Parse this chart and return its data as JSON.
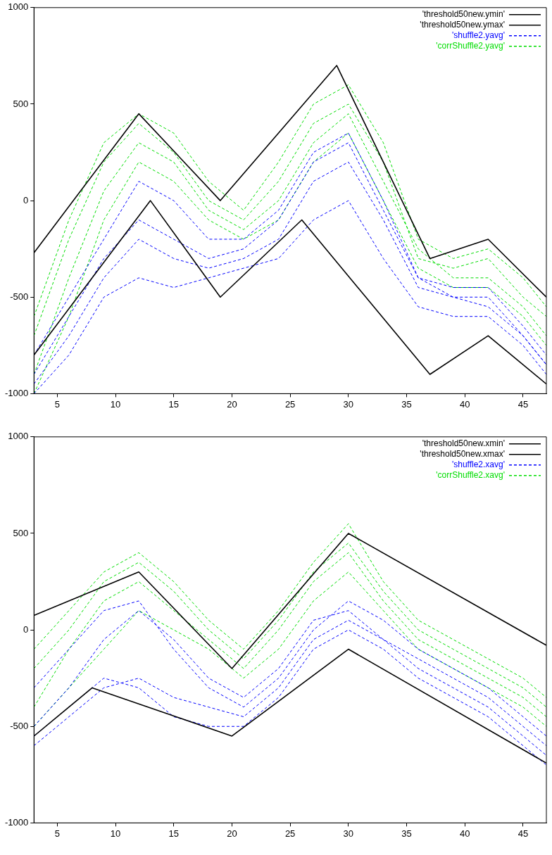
{
  "chart_data": [
    {
      "type": "line",
      "xlim": [
        3,
        47
      ],
      "ylim": [
        -1000,
        1000
      ],
      "xticks": [
        5,
        10,
        15,
        20,
        25,
        30,
        35,
        40,
        45
      ],
      "yticks": [
        -1000,
        -500,
        0,
        500,
        1000
      ],
      "grid": false,
      "legend": "top right",
      "marker": "none",
      "series": [
        {
          "name": "'threshold50new.ymin'",
          "color": "#000000",
          "line_style": "solid",
          "x": [
            3,
            13,
            19,
            26,
            37,
            42,
            47
          ],
          "values": [
            -800,
            0,
            -500,
            -100,
            -900,
            -700,
            -950
          ]
        },
        {
          "name": "'threshold50new.ymax'",
          "color": "#000000",
          "line_style": "solid",
          "x": [
            3,
            12,
            19,
            29,
            37,
            42,
            47
          ],
          "values": [
            -270,
            450,
            0,
            700,
            -300,
            -200,
            -500
          ]
        },
        {
          "name": "'shuffle2.yavg'",
          "color": "#0000ff",
          "line_style": "dashed",
          "x": [
            3,
            6,
            9,
            12,
            15,
            18,
            21,
            24,
            27,
            30,
            33,
            36,
            39,
            42,
            45,
            47
          ],
          "values": [
            -950,
            -700,
            -400,
            -200,
            -300,
            -350,
            -300,
            -200,
            100,
            200,
            -100,
            -450,
            -500,
            -500,
            -700,
            -850
          ]
        },
        {
          "color": "#0000ff",
          "line_style": "dashed",
          "x": [
            3,
            6,
            9,
            12,
            15,
            18,
            21,
            24,
            27,
            30,
            33,
            36,
            39,
            42,
            45,
            47
          ],
          "values": [
            -800,
            -500,
            -200,
            100,
            0,
            -200,
            -200,
            -50,
            250,
            350,
            0,
            -400,
            -450,
            -450,
            -650,
            -800
          ]
        },
        {
          "color": "#0000ff",
          "line_style": "dashed",
          "x": [
            3,
            6,
            9,
            12,
            15,
            18,
            21,
            24,
            27,
            30,
            33,
            36,
            39,
            42,
            45,
            47
          ],
          "values": [
            -1000,
            -800,
            -500,
            -400,
            -450,
            -400,
            -350,
            -300,
            -100,
            0,
            -300,
            -550,
            -600,
            -600,
            -750,
            -900
          ]
        },
        {
          "color": "#0000ff",
          "line_style": "dashed",
          "x": [
            3,
            6,
            9,
            12,
            15,
            18,
            21,
            24,
            27,
            30,
            33,
            36,
            39,
            42,
            45,
            47
          ],
          "values": [
            -900,
            -600,
            -300,
            -100,
            -200,
            -300,
            -250,
            -100,
            200,
            300,
            -50,
            -400,
            -500,
            -550,
            -700,
            -850
          ]
        },
        {
          "name": "'corrShuffle2.yavg'",
          "color": "#00dd00",
          "line_style": "dashed",
          "x": [
            3,
            6,
            9,
            12,
            15,
            18,
            21,
            24,
            27,
            30,
            33,
            36,
            39,
            42,
            45,
            47
          ],
          "values": [
            -700,
            -200,
            200,
            400,
            250,
            0,
            -100,
            100,
            400,
            500,
            200,
            -300,
            -350,
            -300,
            -500,
            -600
          ]
        },
        {
          "color": "#00dd00",
          "line_style": "dashed",
          "x": [
            3,
            6,
            9,
            12,
            15,
            18,
            21,
            24,
            27,
            30,
            33,
            36,
            39,
            42,
            45,
            47
          ],
          "values": [
            -900,
            -400,
            50,
            300,
            200,
            -50,
            -150,
            0,
            300,
            450,
            100,
            -250,
            -400,
            -400,
            -550,
            -700
          ]
        },
        {
          "color": "#00dd00",
          "line_style": "dashed",
          "x": [
            3,
            6,
            9,
            12,
            15,
            18,
            21,
            24,
            27,
            30,
            33,
            36,
            39,
            42,
            45,
            47
          ],
          "values": [
            -600,
            -100,
            300,
            450,
            350,
            100,
            -50,
            200,
            500,
            600,
            300,
            -200,
            -300,
            -250,
            -400,
            -550
          ]
        },
        {
          "color": "#00dd00",
          "line_style": "dashed",
          "x": [
            3,
            6,
            9,
            12,
            15,
            18,
            21,
            24,
            27,
            30,
            33,
            36,
            39,
            42,
            45,
            47
          ],
          "values": [
            -1000,
            -600,
            -100,
            200,
            100,
            -100,
            -200,
            -100,
            200,
            350,
            0,
            -350,
            -450,
            -450,
            -600,
            -750
          ]
        }
      ]
    },
    {
      "type": "line",
      "xlim": [
        3,
        47
      ],
      "ylim": [
        -1000,
        1000
      ],
      "xticks": [
        5,
        10,
        15,
        20,
        25,
        30,
        35,
        40,
        45
      ],
      "yticks": [
        -1000,
        -500,
        0,
        500,
        1000
      ],
      "grid": false,
      "legend": "top right",
      "marker": "none",
      "series": [
        {
          "name": "'threshold50new.xmin'",
          "color": "#000000",
          "line_style": "solid",
          "x": [
            3,
            8,
            20,
            30,
            47
          ],
          "values": [
            -550,
            -300,
            -550,
            -100,
            -690
          ]
        },
        {
          "name": "'threshold50new.xmax'",
          "color": "#000000",
          "line_style": "solid",
          "x": [
            3,
            12,
            20,
            30,
            47
          ],
          "values": [
            75,
            300,
            -200,
            500,
            -80
          ]
        },
        {
          "name": "'shuffle2.xavg'",
          "color": "#0000ff",
          "line_style": "dashed",
          "x": [
            3,
            6,
            9,
            12,
            15,
            18,
            21,
            24,
            27,
            30,
            33,
            36,
            39,
            42,
            45,
            47
          ],
          "values": [
            -500,
            -300,
            -50,
            100,
            -50,
            -250,
            -350,
            -200,
            50,
            100,
            -50,
            -150,
            -250,
            -350,
            -500,
            -600
          ]
        },
        {
          "color": "#0000ff",
          "line_style": "dashed",
          "x": [
            3,
            6,
            9,
            12,
            15,
            18,
            21,
            24,
            27,
            30,
            33,
            36,
            39,
            42,
            45,
            47
          ],
          "values": [
            -600,
            -450,
            -300,
            -250,
            -350,
            -400,
            -450,
            -300,
            -50,
            50,
            -50,
            -200,
            -300,
            -400,
            -550,
            -650
          ]
        },
        {
          "color": "#0000ff",
          "line_style": "dashed",
          "x": [
            3,
            6,
            9,
            12,
            15,
            18,
            21,
            24,
            27,
            30,
            33,
            36,
            39,
            42,
            45,
            47
          ],
          "values": [
            -300,
            -100,
            100,
            150,
            -100,
            -300,
            -400,
            -250,
            0,
            150,
            50,
            -100,
            -200,
            -300,
            -450,
            -550
          ]
        },
        {
          "color": "#0000ff",
          "line_style": "dashed",
          "x": [
            3,
            6,
            9,
            12,
            15,
            18,
            21,
            24,
            27,
            30,
            33,
            36,
            39,
            42,
            45,
            47
          ],
          "values": [
            -550,
            -400,
            -250,
            -300,
            -450,
            -500,
            -500,
            -350,
            -100,
            0,
            -100,
            -250,
            -350,
            -450,
            -600,
            -700
          ]
        },
        {
          "name": "'corrShuffle2.xavg'",
          "color": "#00dd00",
          "line_style": "dashed",
          "x": [
            3,
            6,
            9,
            12,
            15,
            18,
            21,
            24,
            27,
            30,
            33,
            36,
            39,
            42,
            45,
            47
          ],
          "values": [
            -200,
            0,
            250,
            350,
            200,
            0,
            -150,
            50,
            300,
            450,
            200,
            0,
            -100,
            -200,
            -300,
            -400
          ]
        },
        {
          "color": "#00dd00",
          "line_style": "dashed",
          "x": [
            3,
            6,
            9,
            12,
            15,
            18,
            21,
            24,
            27,
            30,
            33,
            36,
            39,
            42,
            45,
            47
          ],
          "values": [
            -400,
            -100,
            150,
            250,
            100,
            -50,
            -200,
            0,
            250,
            400,
            150,
            -50,
            -150,
            -250,
            -350,
            -450
          ]
        },
        {
          "color": "#00dd00",
          "line_style": "dashed",
          "x": [
            3,
            6,
            9,
            12,
            15,
            18,
            21,
            24,
            27,
            30,
            33,
            36,
            39,
            42,
            45,
            47
          ],
          "values": [
            -100,
            100,
            300,
            400,
            250,
            50,
            -100,
            100,
            350,
            550,
            250,
            50,
            -50,
            -150,
            -250,
            -350
          ]
        },
        {
          "color": "#00dd00",
          "line_style": "dashed",
          "x": [
            3,
            6,
            9,
            12,
            15,
            18,
            21,
            24,
            27,
            30,
            33,
            36,
            39,
            42,
            45,
            47
          ],
          "values": [
            -500,
            -300,
            -100,
            100,
            0,
            -100,
            -250,
            -100,
            150,
            300,
            100,
            -100,
            -200,
            -300,
            -400,
            -500
          ]
        }
      ]
    }
  ]
}
